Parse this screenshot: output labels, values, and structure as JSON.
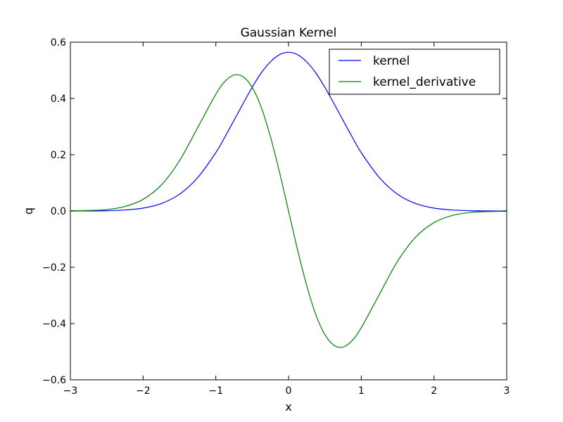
{
  "chart_data": {
    "type": "line",
    "title": "Gaussian Kernel",
    "xlabel": "x",
    "ylabel": "q",
    "xlim": [
      -3,
      3
    ],
    "ylim": [
      -0.6,
      0.6
    ],
    "xticks": [
      -3,
      -2,
      -1,
      0,
      1,
      2,
      3
    ],
    "xtick_labels": [
      "−3",
      "−2",
      "−1",
      "0",
      "1",
      "2",
      "3"
    ],
    "yticks": [
      -0.6,
      -0.4,
      -0.2,
      0.0,
      0.2,
      0.4,
      0.6
    ],
    "ytick_labels": [
      "−0.6",
      "−0.4",
      "−0.2",
      "0.0",
      "0.2",
      "0.4",
      "0.6"
    ],
    "grid": false,
    "legend_position": "top-right",
    "x": [
      -3.0,
      -2.75,
      -2.5,
      -2.25,
      -2.0,
      -1.75,
      -1.5,
      -1.25,
      -1.0,
      -0.875,
      -0.75,
      -0.625,
      -0.5,
      -0.375,
      -0.25,
      -0.125,
      0.0,
      0.125,
      0.25,
      0.375,
      0.5,
      0.625,
      0.75,
      0.875,
      1.0,
      1.25,
      1.5,
      1.75,
      2.0,
      2.25,
      2.5,
      2.75,
      3.0
    ],
    "series": [
      {
        "name": "kernel",
        "color": "#0000ff",
        "values": [
          0.0001,
          0.0003,
          0.001,
          0.0036,
          0.0103,
          0.0264,
          0.0595,
          0.1184,
          0.2076,
          0.2631,
          0.3224,
          0.3817,
          0.4394,
          0.4909,
          0.53,
          0.5554,
          0.5642,
          0.5554,
          0.53,
          0.4909,
          0.4394,
          0.3817,
          0.3224,
          0.2631,
          0.2076,
          0.1184,
          0.0595,
          0.0264,
          0.0103,
          0.0036,
          0.001,
          0.0003,
          0.0001
        ]
      },
      {
        "name": "kernel_derivative",
        "color": "#008000",
        "values": [
          0.0007,
          0.0018,
          0.0051,
          0.016,
          0.0414,
          0.0923,
          0.1784,
          0.2961,
          0.4151,
          0.4604,
          0.4836,
          0.4771,
          0.4394,
          0.3682,
          0.265,
          0.1388,
          0.0,
          -0.1388,
          -0.265,
          -0.3682,
          -0.4394,
          -0.4771,
          -0.4836,
          -0.4604,
          -0.4151,
          -0.2961,
          -0.1784,
          -0.0923,
          -0.0414,
          -0.016,
          -0.0051,
          -0.0018,
          -0.0007
        ]
      }
    ]
  }
}
